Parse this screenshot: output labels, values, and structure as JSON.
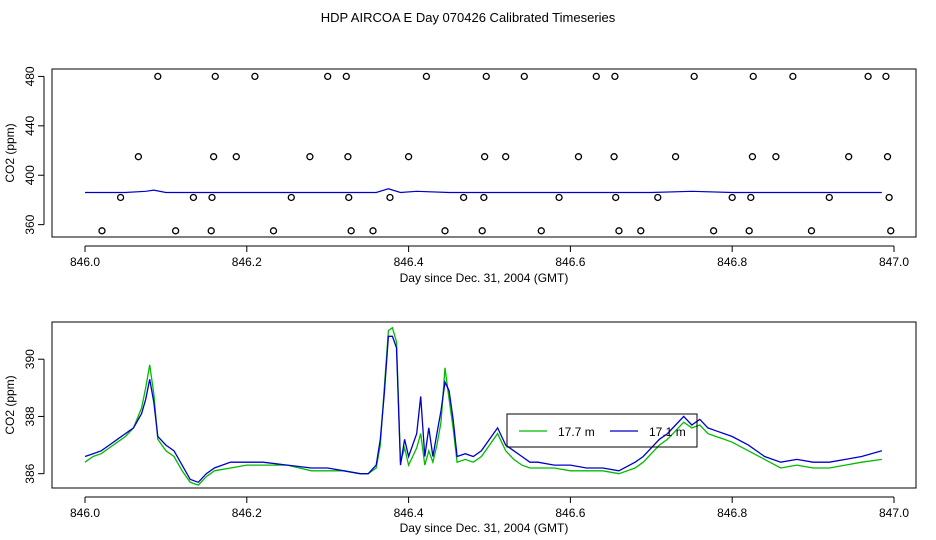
{
  "page": {
    "title": "HDP AIRCOA E  Day 070426  Calibrated Timeseries"
  },
  "chart_data": [
    {
      "type": "scatter",
      "xlabel": "Day since Dec. 31, 2004 (GMT)",
      "ylabel": "CO2 (ppm)",
      "xlim": [
        846.0,
        847.0
      ],
      "ylim": [
        350,
        486
      ],
      "x_ticks": [
        "846.0",
        "846.2",
        "846.4",
        "846.6",
        "846.8",
        "847.0"
      ],
      "y_ticks": [
        "360",
        "400",
        "440",
        "480"
      ],
      "points": [
        [
          846.09,
          480
        ],
        [
          846.161,
          480
        ],
        [
          846.21,
          480
        ],
        [
          846.3,
          480
        ],
        [
          846.323,
          480
        ],
        [
          846.422,
          480
        ],
        [
          846.496,
          480
        ],
        [
          846.543,
          480
        ],
        [
          846.632,
          480
        ],
        [
          846.655,
          480
        ],
        [
          846.753,
          480
        ],
        [
          846.826,
          480
        ],
        [
          846.875,
          480
        ],
        [
          846.968,
          480
        ],
        [
          846.99,
          480
        ],
        [
          846.066,
          415
        ],
        [
          846.159,
          415
        ],
        [
          846.187,
          415
        ],
        [
          846.278,
          415
        ],
        [
          846.325,
          415
        ],
        [
          846.4,
          415
        ],
        [
          846.494,
          415
        ],
        [
          846.52,
          415
        ],
        [
          846.61,
          415
        ],
        [
          846.654,
          415
        ],
        [
          846.73,
          415
        ],
        [
          846.825,
          415
        ],
        [
          846.854,
          415
        ],
        [
          846.944,
          415
        ],
        [
          846.992,
          415
        ],
        [
          846.044,
          382
        ],
        [
          846.134,
          382
        ],
        [
          846.157,
          382
        ],
        [
          846.255,
          382
        ],
        [
          846.326,
          382
        ],
        [
          846.377,
          382
        ],
        [
          846.468,
          382
        ],
        [
          846.493,
          382
        ],
        [
          846.586,
          382
        ],
        [
          846.656,
          382
        ],
        [
          846.708,
          382
        ],
        [
          846.8,
          382
        ],
        [
          846.823,
          382
        ],
        [
          846.92,
          382
        ],
        [
          846.994,
          382
        ],
        [
          846.021,
          355
        ],
        [
          846.112,
          355
        ],
        [
          846.156,
          355
        ],
        [
          846.233,
          355
        ],
        [
          846.329,
          355
        ],
        [
          846.356,
          355
        ],
        [
          846.445,
          355
        ],
        [
          846.491,
          355
        ],
        [
          846.564,
          355
        ],
        [
          846.66,
          355
        ],
        [
          846.687,
          355
        ],
        [
          846.777,
          355
        ],
        [
          846.821,
          355
        ],
        [
          846.898,
          355
        ],
        [
          846.996,
          355
        ]
      ],
      "series": [
        {
          "color": "#0000cc",
          "x": [
            846.0,
            846.05,
            846.075,
            846.085,
            846.1,
            846.2,
            846.3,
            846.36,
            846.375,
            846.39,
            846.41,
            846.45,
            846.5,
            846.6,
            846.7,
            846.75,
            846.8,
            846.9,
            846.985
          ],
          "y": [
            386,
            386,
            387,
            388,
            386,
            386,
            386,
            386,
            389,
            386,
            387,
            386,
            386,
            386,
            386,
            387,
            386,
            386,
            386
          ]
        }
      ]
    },
    {
      "type": "line",
      "xlabel": "Day since Dec. 31, 2004 (GMT)",
      "ylabel": "CO2 (ppm)",
      "xlim": [
        846.0,
        847.0
      ],
      "ylim": [
        385.5,
        391.3
      ],
      "x_ticks": [
        "846.0",
        "846.2",
        "846.4",
        "846.6",
        "846.8",
        "847.0"
      ],
      "y_ticks": [
        "386",
        "388",
        "390"
      ],
      "legend_position": "right-center",
      "series": [
        {
          "name": "17.7 m",
          "color": "#00bb00",
          "x": [
            846.0,
            846.01,
            846.02,
            846.03,
            846.04,
            846.05,
            846.06,
            846.07,
            846.075,
            846.08,
            846.085,
            846.09,
            846.1,
            846.11,
            846.12,
            846.13,
            846.14,
            846.15,
            846.16,
            846.18,
            846.2,
            846.22,
            846.25,
            846.28,
            846.3,
            846.32,
            846.34,
            846.35,
            846.36,
            846.365,
            846.37,
            846.375,
            846.38,
            846.385,
            846.39,
            846.395,
            846.4,
            846.41,
            846.415,
            846.42,
            846.425,
            846.43,
            846.435,
            846.44,
            846.445,
            846.45,
            846.455,
            846.46,
            846.47,
            846.48,
            846.49,
            846.5,
            846.51,
            846.52,
            846.53,
            846.54,
            846.55,
            846.56,
            846.58,
            846.6,
            846.62,
            846.64,
            846.66,
            846.68,
            846.69,
            846.7,
            846.71,
            846.72,
            846.73,
            846.74,
            846.75,
            846.76,
            846.77,
            846.78,
            846.79,
            846.8,
            846.82,
            846.84,
            846.86,
            846.88,
            846.9,
            846.92,
            846.94,
            846.96,
            846.985
          ],
          "y": [
            386.4,
            386.6,
            386.7,
            386.9,
            387.1,
            387.3,
            387.6,
            388.3,
            389.0,
            389.8,
            388.8,
            387.2,
            386.8,
            386.6,
            386.1,
            385.7,
            385.6,
            385.9,
            386.1,
            386.2,
            386.3,
            386.3,
            386.3,
            386.1,
            386.1,
            386.1,
            386.0,
            386.0,
            386.2,
            387.0,
            389.0,
            391.0,
            391.1,
            390.6,
            386.4,
            386.9,
            386.3,
            386.9,
            387.4,
            386.3,
            386.8,
            386.4,
            387.0,
            387.8,
            389.7,
            388.6,
            387.6,
            386.4,
            386.5,
            386.4,
            386.6,
            387.0,
            387.4,
            386.8,
            386.5,
            386.3,
            386.2,
            386.2,
            386.2,
            386.1,
            386.1,
            386.1,
            386.0,
            386.2,
            386.4,
            386.7,
            387.0,
            387.2,
            387.5,
            387.8,
            387.6,
            387.7,
            387.4,
            387.3,
            387.2,
            387.1,
            386.8,
            386.5,
            386.2,
            386.3,
            386.2,
            386.2,
            386.3,
            386.4,
            386.5
          ]
        },
        {
          "name": "17.1 m",
          "color": "#0000cc",
          "x": [
            846.0,
            846.01,
            846.02,
            846.03,
            846.04,
            846.05,
            846.06,
            846.07,
            846.075,
            846.08,
            846.085,
            846.09,
            846.1,
            846.11,
            846.12,
            846.13,
            846.14,
            846.15,
            846.16,
            846.18,
            846.2,
            846.22,
            846.25,
            846.28,
            846.3,
            846.32,
            846.34,
            846.35,
            846.36,
            846.365,
            846.37,
            846.375,
            846.38,
            846.385,
            846.39,
            846.395,
            846.4,
            846.41,
            846.415,
            846.42,
            846.425,
            846.43,
            846.435,
            846.44,
            846.445,
            846.45,
            846.455,
            846.46,
            846.47,
            846.48,
            846.49,
            846.5,
            846.51,
            846.52,
            846.53,
            846.54,
            846.55,
            846.56,
            846.58,
            846.6,
            846.62,
            846.64,
            846.66,
            846.68,
            846.69,
            846.7,
            846.71,
            846.72,
            846.73,
            846.74,
            846.75,
            846.76,
            846.77,
            846.78,
            846.79,
            846.8,
            846.82,
            846.84,
            846.86,
            846.88,
            846.9,
            846.92,
            846.94,
            846.96,
            846.985
          ],
          "y": [
            386.6,
            386.7,
            386.8,
            387.0,
            387.2,
            387.4,
            387.6,
            388.1,
            388.6,
            389.3,
            388.5,
            387.3,
            387.0,
            386.8,
            386.3,
            385.8,
            385.7,
            386.0,
            386.2,
            386.4,
            386.4,
            386.4,
            386.3,
            386.2,
            386.2,
            386.1,
            386.0,
            386.0,
            386.3,
            387.2,
            388.8,
            390.8,
            390.8,
            390.4,
            386.3,
            387.2,
            386.6,
            387.4,
            388.7,
            386.6,
            387.6,
            386.6,
            387.4,
            388.2,
            389.2,
            388.9,
            387.9,
            386.6,
            386.7,
            386.6,
            386.8,
            387.2,
            387.6,
            387.0,
            386.8,
            386.6,
            386.4,
            386.4,
            386.3,
            386.3,
            386.2,
            386.2,
            386.1,
            386.4,
            386.6,
            386.9,
            387.2,
            387.4,
            387.7,
            388.0,
            387.7,
            387.9,
            387.6,
            387.5,
            387.4,
            387.3,
            387.0,
            386.6,
            386.4,
            386.5,
            386.4,
            386.4,
            386.5,
            386.6,
            386.8
          ]
        }
      ]
    }
  ]
}
